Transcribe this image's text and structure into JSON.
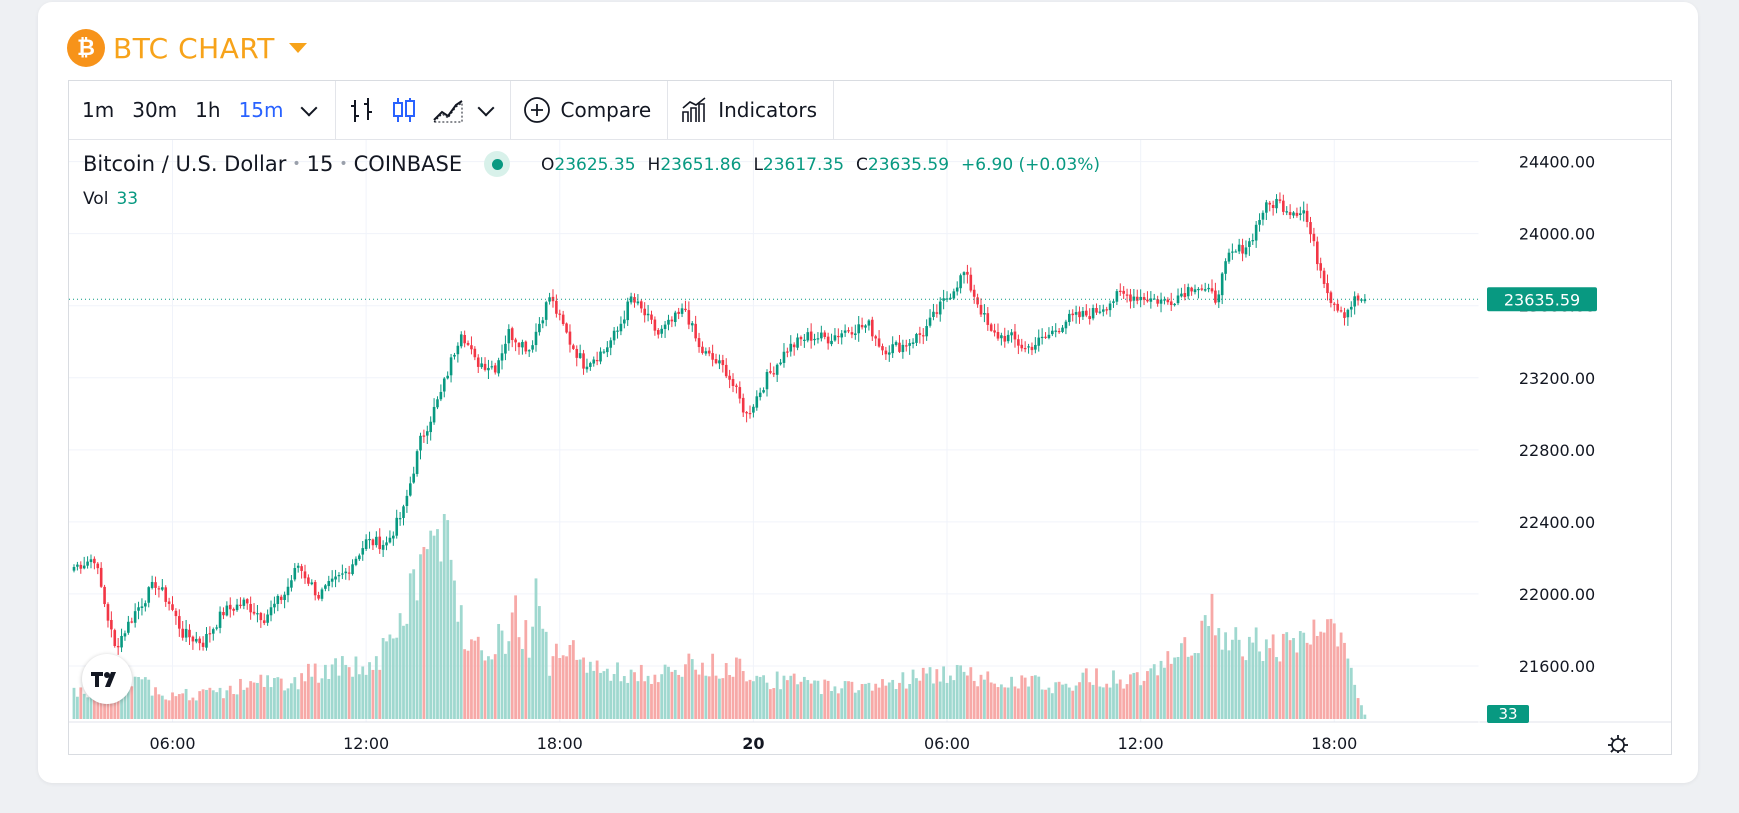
{
  "header": {
    "logo_symbol": "₿",
    "title": "BTC CHART",
    "accent": "#f7a31a"
  },
  "toolbar": {
    "timeframes": [
      "1m",
      "30m",
      "1h",
      "15m"
    ],
    "active_timeframe": "15m",
    "compare_label": "Compare",
    "indicators_label": "Indicators"
  },
  "legend": {
    "symbol": "Bitcoin / U.S. Dollar",
    "interval": "15",
    "exchange": "COINBASE",
    "o_label": "O",
    "o": "23625.35",
    "h_label": "H",
    "h": "23651.86",
    "l_label": "L",
    "l": "23617.35",
    "c_label": "C",
    "c": "23635.59",
    "change": "+6.90 (+0.03%)",
    "vol_label": "Vol",
    "vol": "33"
  },
  "chart_data": {
    "type": "candlestick",
    "title": "Bitcoin / U.S. Dollar · 15 · COINBASE",
    "y_ticks": [
      "24400.00",
      "24000.00",
      "23600.00",
      "23200.00",
      "22800.00",
      "22400.00",
      "22000.00",
      "21600.00"
    ],
    "ylim": [
      21300,
      24520
    ],
    "x_ticks": [
      "06:00",
      "12:00",
      "18:00",
      "20",
      "06:00",
      "12:00",
      "18:00"
    ],
    "x_ticks_bold": [
      false,
      false,
      false,
      true,
      false,
      false,
      false
    ],
    "last_price_label": "23635.59",
    "last_price": 23635.59,
    "last_volume_label": "33",
    "up_color": "#089981",
    "down_color": "#f23645",
    "anchors": [
      [
        0,
        22150
      ],
      [
        6,
        22200
      ],
      [
        12,
        21700
      ],
      [
        18,
        21900
      ],
      [
        24,
        22060
      ],
      [
        28,
        21950
      ],
      [
        32,
        21780
      ],
      [
        38,
        21730
      ],
      [
        44,
        21900
      ],
      [
        50,
        21950
      ],
      [
        56,
        21870
      ],
      [
        62,
        22000
      ],
      [
        66,
        22160
      ],
      [
        72,
        21990
      ],
      [
        80,
        22120
      ],
      [
        86,
        22290
      ],
      [
        92,
        22280
      ],
      [
        97,
        22460
      ],
      [
        102,
        22850
      ],
      [
        108,
        23110
      ],
      [
        114,
        23470
      ],
      [
        118,
        23290
      ],
      [
        124,
        23260
      ],
      [
        128,
        23450
      ],
      [
        134,
        23360
      ],
      [
        140,
        23650
      ],
      [
        146,
        23400
      ],
      [
        150,
        23280
      ],
      [
        156,
        23350
      ],
      [
        160,
        23460
      ],
      [
        164,
        23640
      ],
      [
        168,
        23550
      ],
      [
        172,
        23440
      ],
      [
        180,
        23580
      ],
      [
        184,
        23360
      ],
      [
        192,
        23240
      ],
      [
        198,
        22990
      ],
      [
        204,
        23200
      ],
      [
        210,
        23360
      ],
      [
        216,
        23430
      ],
      [
        222,
        23420
      ],
      [
        228,
        23470
      ],
      [
        234,
        23490
      ],
      [
        238,
        23360
      ],
      [
        244,
        23380
      ],
      [
        250,
        23450
      ],
      [
        256,
        23620
      ],
      [
        262,
        23780
      ],
      [
        266,
        23620
      ],
      [
        270,
        23440
      ],
      [
        276,
        23420
      ],
      [
        280,
        23360
      ],
      [
        286,
        23420
      ],
      [
        292,
        23520
      ],
      [
        300,
        23560
      ],
      [
        308,
        23660
      ],
      [
        314,
        23650
      ],
      [
        322,
        23620
      ],
      [
        330,
        23720
      ],
      [
        336,
        23640
      ],
      [
        340,
        23870
      ],
      [
        346,
        23950
      ],
      [
        350,
        24130
      ],
      [
        354,
        24180
      ],
      [
        358,
        24130
      ],
      [
        362,
        24130
      ],
      [
        366,
        23860
      ],
      [
        370,
        23640
      ],
      [
        374,
        23560
      ],
      [
        377,
        23630
      ],
      [
        380,
        23636
      ]
    ],
    "volume_anchors": [
      [
        0,
        30
      ],
      [
        8,
        30
      ],
      [
        14,
        45
      ],
      [
        20,
        40
      ],
      [
        28,
        28
      ],
      [
        36,
        28
      ],
      [
        44,
        30
      ],
      [
        52,
        42
      ],
      [
        60,
        42
      ],
      [
        64,
        35
      ],
      [
        68,
        55
      ],
      [
        72,
        50
      ],
      [
        80,
        60
      ],
      [
        88,
        60
      ],
      [
        92,
        80
      ],
      [
        96,
        100
      ],
      [
        100,
        160
      ],
      [
        104,
        190
      ],
      [
        108,
        200
      ],
      [
        110,
        195
      ],
      [
        114,
        110
      ],
      [
        120,
        85
      ],
      [
        126,
        90
      ],
      [
        130,
        120
      ],
      [
        134,
        85
      ],
      [
        136,
        165
      ],
      [
        140,
        65
      ],
      [
        144,
        75
      ],
      [
        150,
        70
      ],
      [
        156,
        55
      ],
      [
        160,
        52
      ],
      [
        166,
        52
      ],
      [
        172,
        48
      ],
      [
        180,
        60
      ],
      [
        188,
        60
      ],
      [
        196,
        60
      ],
      [
        204,
        45
      ],
      [
        212,
        42
      ],
      [
        220,
        38
      ],
      [
        228,
        38
      ],
      [
        236,
        38
      ],
      [
        240,
        42
      ],
      [
        248,
        48
      ],
      [
        256,
        52
      ],
      [
        262,
        50
      ],
      [
        270,
        46
      ],
      [
        278,
        45
      ],
      [
        284,
        40
      ],
      [
        292,
        38
      ],
      [
        300,
        50
      ],
      [
        310,
        42
      ],
      [
        316,
        55
      ],
      [
        324,
        85
      ],
      [
        330,
        68
      ],
      [
        334,
        120
      ],
      [
        338,
        105
      ],
      [
        342,
        100
      ],
      [
        346,
        85
      ],
      [
        352,
        90
      ],
      [
        358,
        78
      ],
      [
        364,
        98
      ],
      [
        370,
        110
      ],
      [
        376,
        50
      ],
      [
        380,
        5
      ]
    ],
    "volume_max": 200
  }
}
